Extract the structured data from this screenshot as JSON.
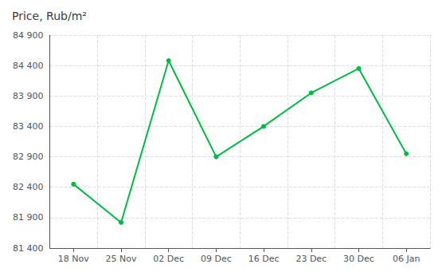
{
  "chart_data": {
    "type": "line",
    "title": "Price, Rub/m²",
    "categories": [
      "18 Nov",
      "25 Nov",
      "02 Dec",
      "09 Dec",
      "16 Dec",
      "23 Dec",
      "30 Dec",
      "06 Jan"
    ],
    "values": [
      82450,
      81820,
      84480,
      82900,
      83400,
      83950,
      84350,
      82950
    ],
    "color": "#00bb44",
    "marker": "circle",
    "ylim": [
      81400,
      84900
    ],
    "yticks": [
      {
        "value": 81400,
        "label": "81 400"
      },
      {
        "value": 81900,
        "label": "81 900"
      },
      {
        "value": 82400,
        "label": "82 400"
      },
      {
        "value": 82900,
        "label": "82 900"
      },
      {
        "value": 83400,
        "label": "83 400"
      },
      {
        "value": 83900,
        "label": "83 900"
      },
      {
        "value": 84400,
        "label": "84 400"
      },
      {
        "value": 84900,
        "label": "84 900"
      }
    ],
    "grid": true
  }
}
